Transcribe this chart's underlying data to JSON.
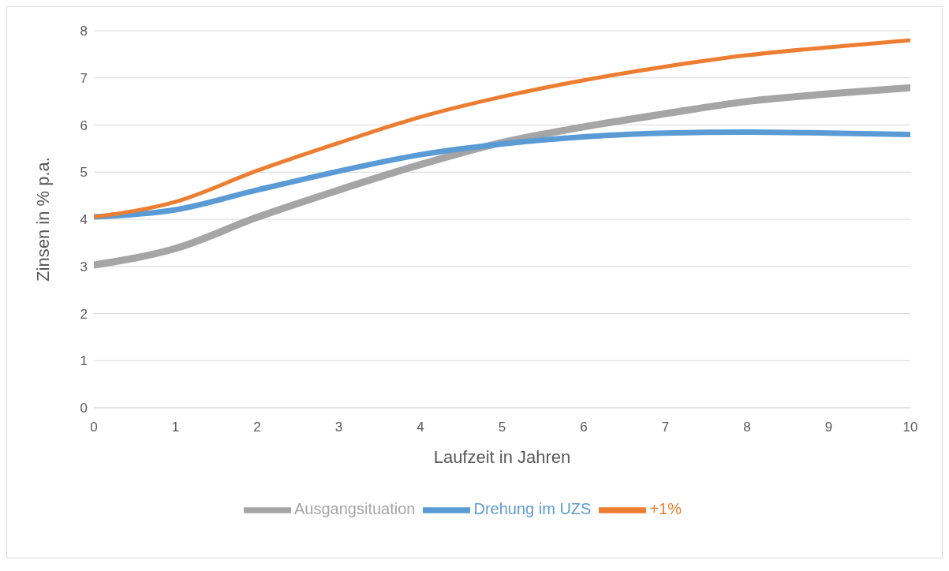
{
  "chart_data": {
    "type": "line",
    "xlabel": "Laufzeit in Jahren",
    "ylabel": "Zinsen in % p.a.",
    "x": [
      0,
      1,
      2,
      3,
      4,
      5,
      6,
      7,
      8,
      9,
      10
    ],
    "xlim": [
      0,
      10
    ],
    "xticks": [
      0,
      1,
      2,
      3,
      4,
      5,
      6,
      7,
      8,
      9,
      10
    ],
    "ylim": [
      0,
      8
    ],
    "yticks": [
      0,
      1,
      2,
      3,
      4,
      5,
      6,
      7,
      8
    ],
    "grid": "y",
    "legend": "bottom",
    "line_style": "solid",
    "series": [
      {
        "name": "Ausgangsituation",
        "color": "#a5a5a5",
        "values": [
          3.03,
          3.38,
          4.04,
          4.62,
          5.16,
          5.63,
          5.96,
          6.24,
          6.5,
          6.66,
          6.79
        ]
      },
      {
        "name": "Drehung im UZS",
        "color": "#5b9bd5",
        "values": [
          4.05,
          4.2,
          4.62,
          5.02,
          5.37,
          5.6,
          5.75,
          5.83,
          5.85,
          5.83,
          5.8
        ]
      },
      {
        "name": "+1%",
        "color": "#ed7d31",
        "values": [
          4.05,
          4.37,
          5.03,
          5.62,
          6.17,
          6.6,
          6.95,
          7.24,
          7.48,
          7.65,
          7.8
        ]
      }
    ]
  }
}
